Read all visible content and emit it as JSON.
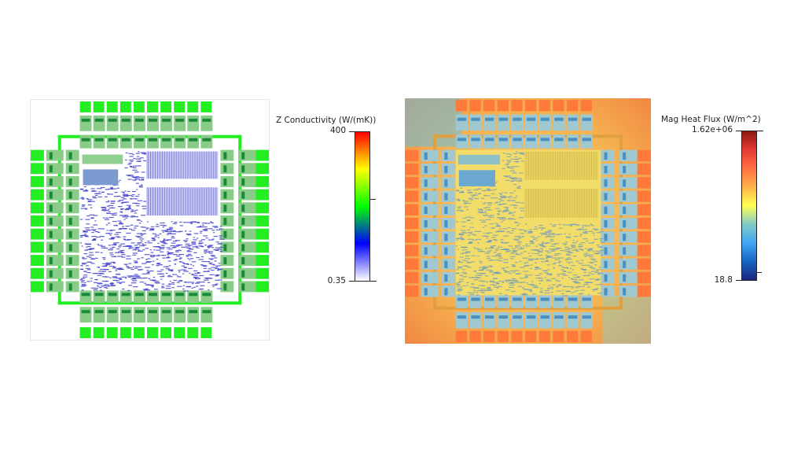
{
  "figures": [
    {
      "name": "z-conductivity",
      "colorbar": {
        "title": "Z Conductivity (W/(mK))",
        "max_label": "400",
        "min_label": "0.35",
        "colors": [
          "#ffffff",
          "#0000ff",
          "#00ff00",
          "#ffff00",
          "#ff0000"
        ]
      },
      "colors": {
        "pad": "#22ee22",
        "core": "#3a3acc",
        "background": "#ffffff"
      }
    },
    {
      "name": "mag-heat-flux",
      "colorbar": {
        "title": "Mag Heat Flux (W/m^2)",
        "max_label": "1.62e+06",
        "min_label": "18.8",
        "colors": [
          "#1a237e",
          "#1565c0",
          "#42a5f5",
          "#80cbc4",
          "#ffff55",
          "#ffb347",
          "#ff7043",
          "#e53935",
          "#8b1a10"
        ]
      },
      "colors": {
        "pad": "#ff7a3a",
        "core": "#f0d860",
        "background": "#f6b04a"
      }
    }
  ]
}
